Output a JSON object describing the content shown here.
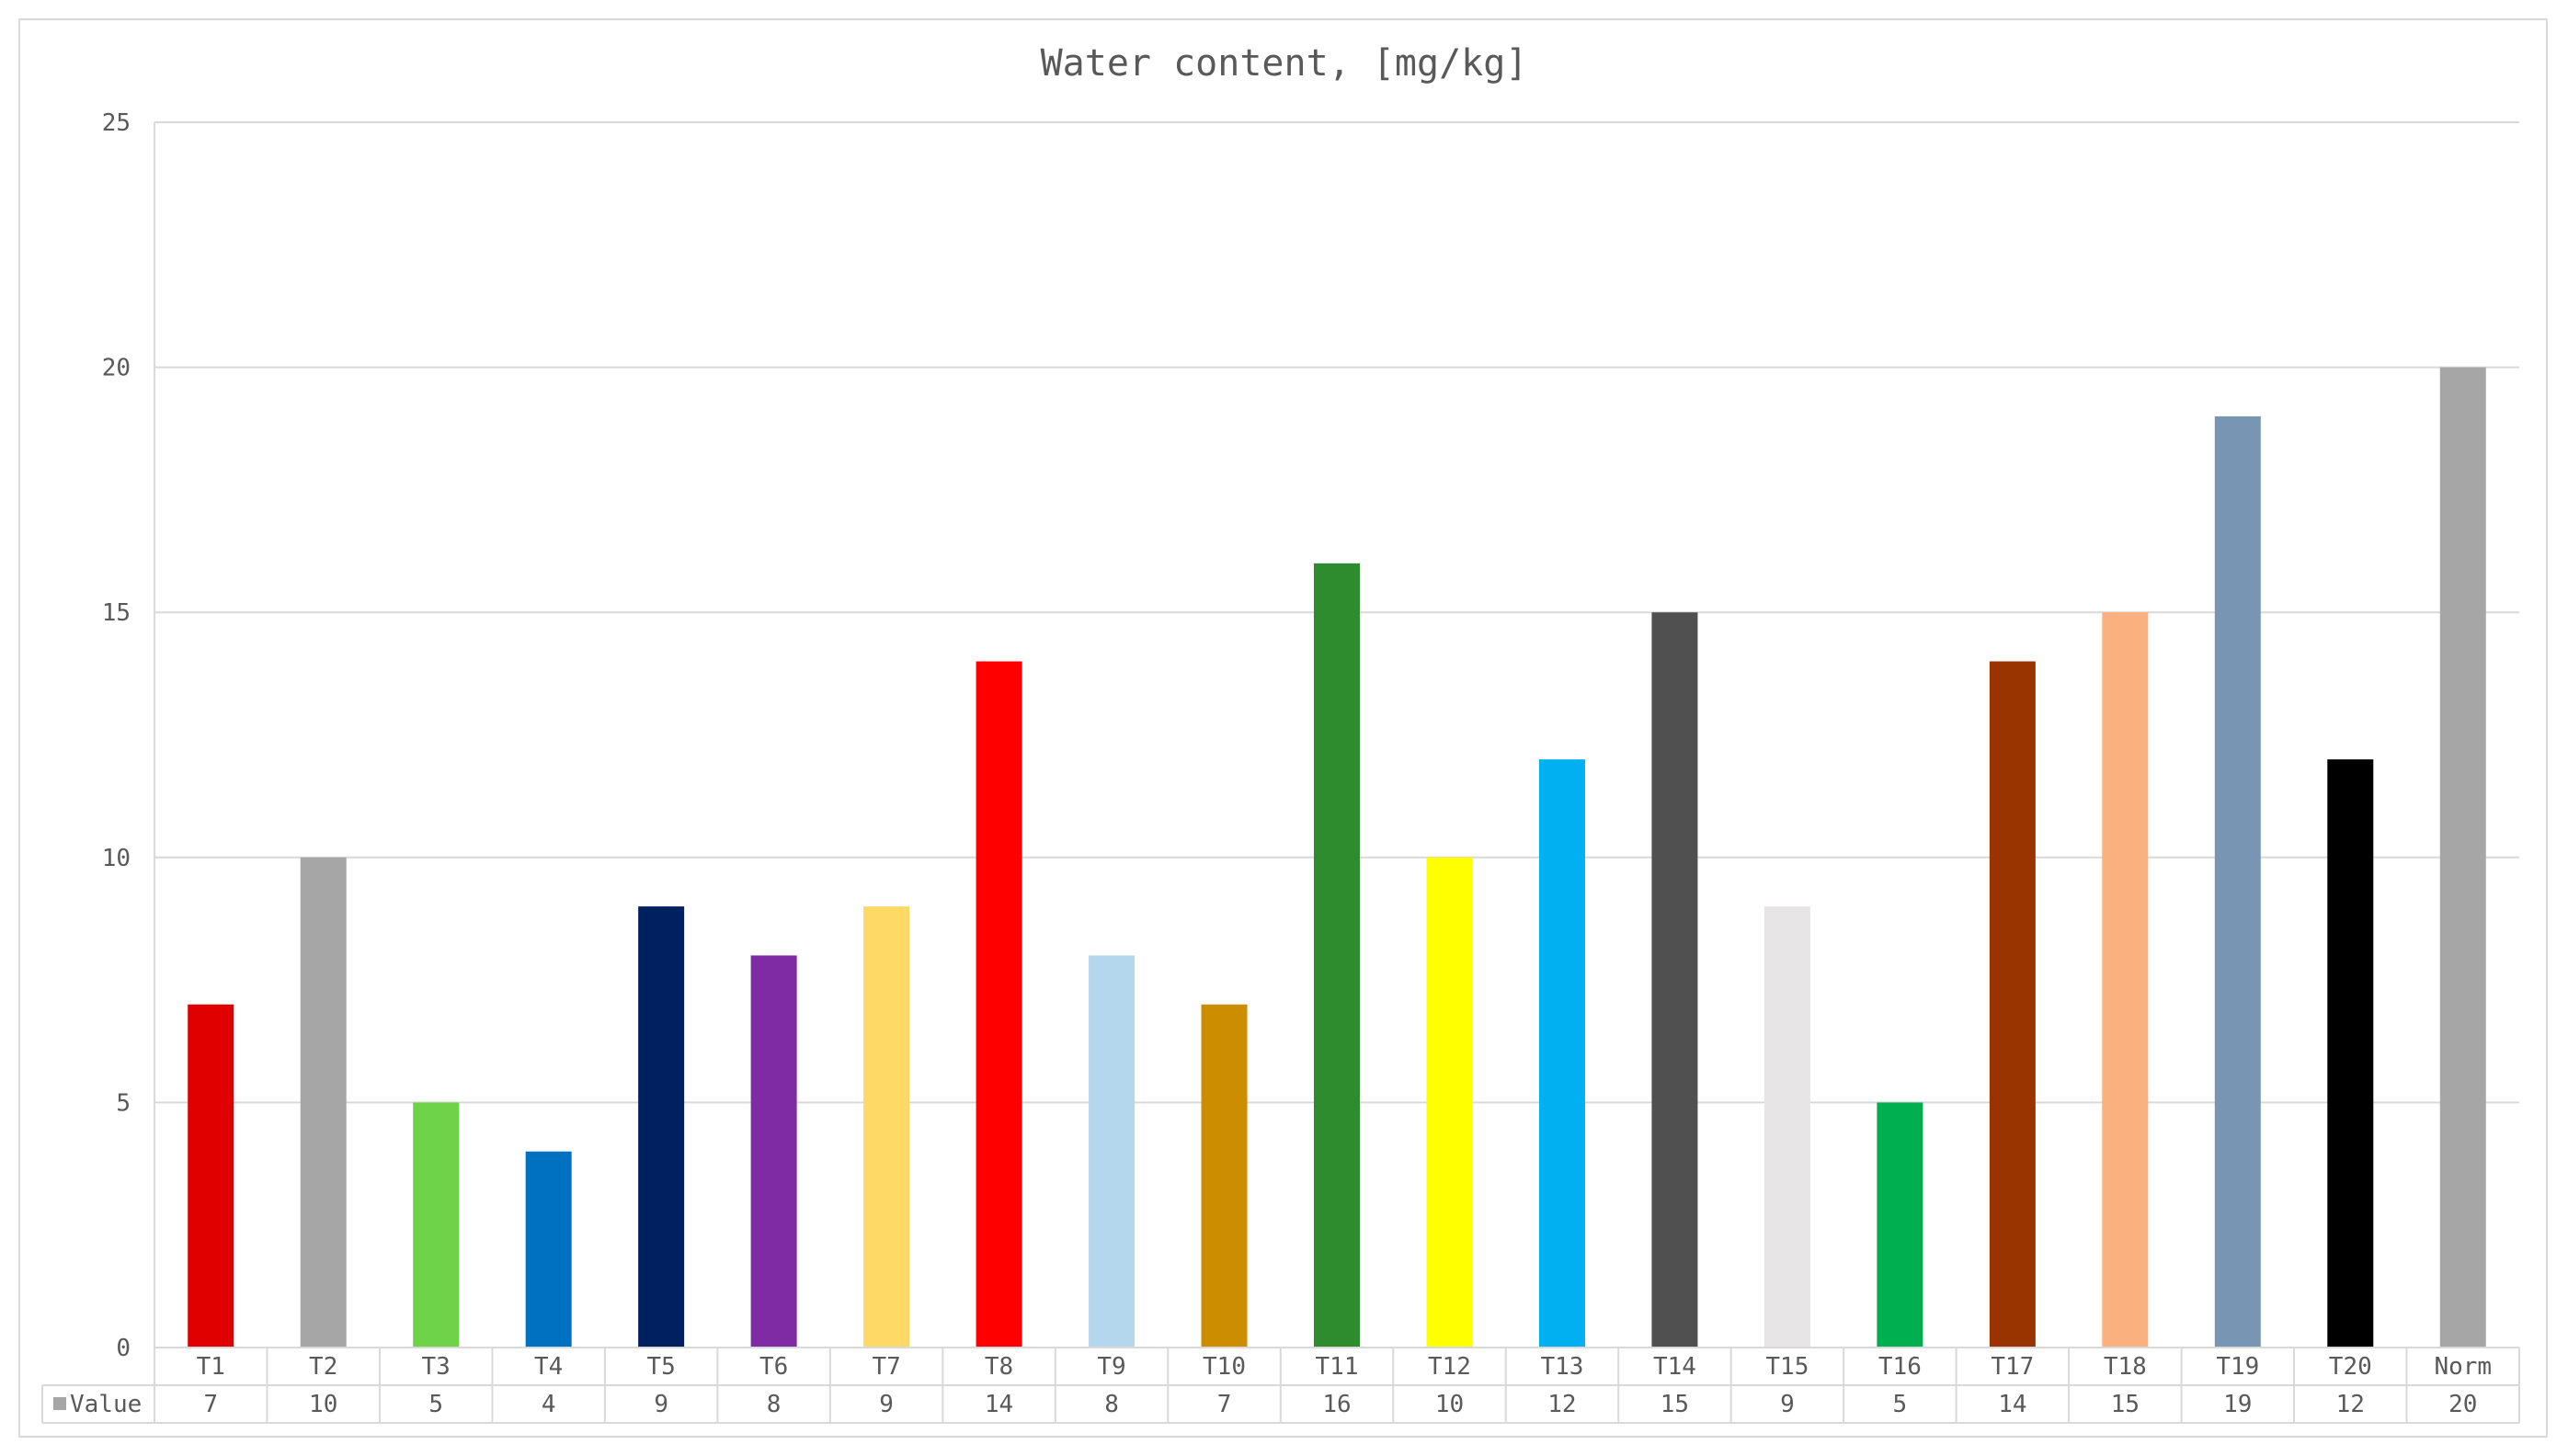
{
  "chart_data": {
    "type": "bar",
    "title": "Water content, [mg/kg]",
    "xlabel": "",
    "ylabel": "",
    "ylim": [
      0,
      25
    ],
    "yticks": [
      0,
      5,
      10,
      15,
      20,
      25
    ],
    "grid": true,
    "legend": "data-table",
    "categories": [
      "T1",
      "T2",
      "T3",
      "T4",
      "T5",
      "T6",
      "T7",
      "T8",
      "T9",
      "T10",
      "T11",
      "T12",
      "T13",
      "T14",
      "T15",
      "T16",
      "T17",
      "T18",
      "T19",
      "T20",
      "Norm"
    ],
    "series": [
      {
        "name": "Value",
        "values": [
          7,
          10,
          5,
          4,
          9,
          8,
          9,
          14,
          8,
          7,
          16,
          10,
          12,
          15,
          9,
          5,
          14,
          15,
          19,
          12,
          20
        ],
        "colors": [
          "#E00000",
          "#A6A6A6",
          "#6FD34A",
          "#0070C0",
          "#002060",
          "#7F2BA3",
          "#FFD966",
          "#FF0000",
          "#B4D7EE",
          "#CC8E00",
          "#2E8B2E",
          "#FFFF00",
          "#00B0F0",
          "#505050",
          "#E7E5E6",
          "#00B050",
          "#993300",
          "#FBB07F",
          "#7896B3",
          "#000000",
          "#A6A6A6"
        ]
      }
    ],
    "legend_key_color": "#A6A6A6"
  }
}
